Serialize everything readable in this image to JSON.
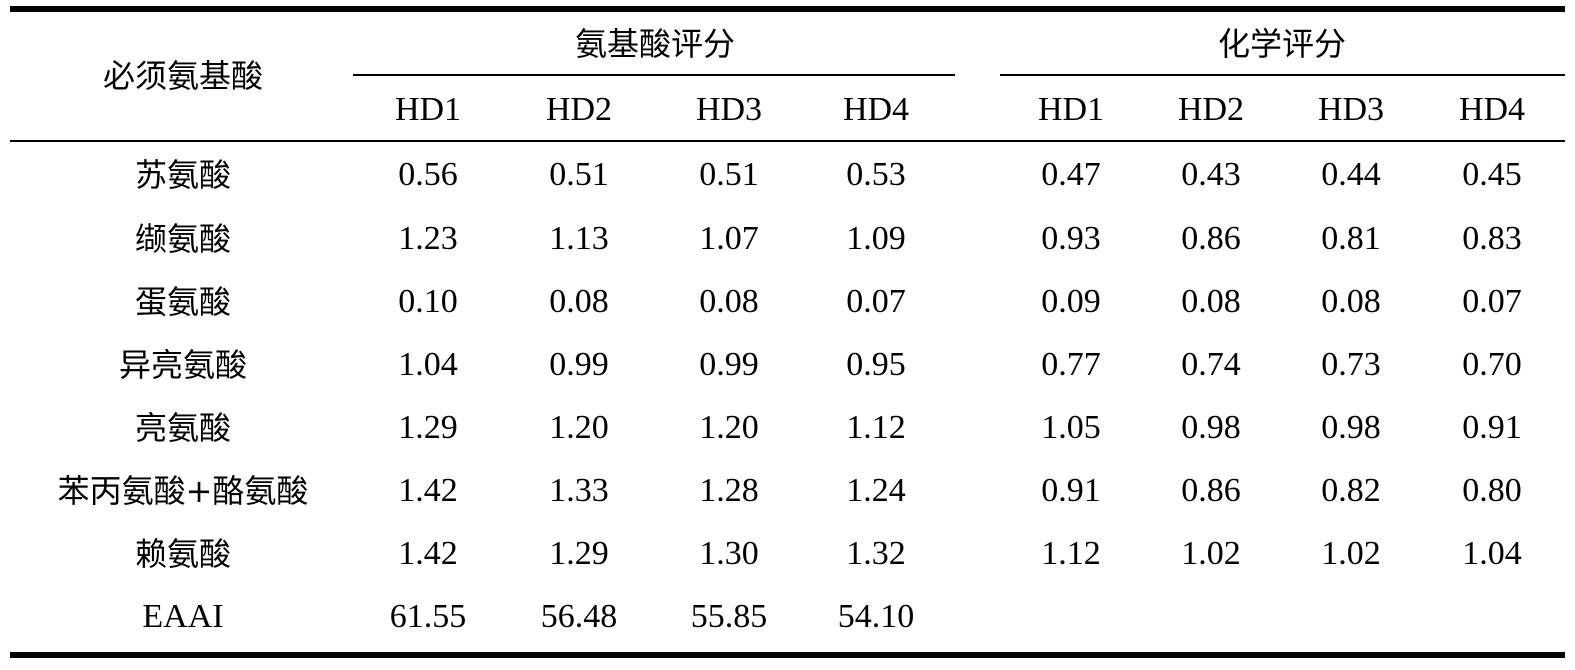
{
  "table": {
    "header": {
      "row_label": "必须氨基酸",
      "group1": "氨基酸评分",
      "group2": "化学评分",
      "columns": [
        "HD1",
        "HD2",
        "HD3",
        "HD4",
        "HD1",
        "HD2",
        "HD3",
        "HD4"
      ]
    },
    "rows": [
      {
        "label": "苏氨酸",
        "values": [
          "0.56",
          "0.51",
          "0.51",
          "0.53",
          "0.47",
          "0.43",
          "0.44",
          "0.45"
        ]
      },
      {
        "label": "缬氨酸",
        "values": [
          "1.23",
          "1.13",
          "1.07",
          "1.09",
          "0.93",
          "0.86",
          "0.81",
          "0.83"
        ]
      },
      {
        "label": "蛋氨酸",
        "values": [
          "0.10",
          "0.08",
          "0.08",
          "0.07",
          "0.09",
          "0.08",
          "0.08",
          "0.07"
        ]
      },
      {
        "label": "异亮氨酸",
        "values": [
          "1.04",
          "0.99",
          "0.99",
          "0.95",
          "0.77",
          "0.74",
          "0.73",
          "0.70"
        ]
      },
      {
        "label": "亮氨酸",
        "values": [
          "1.29",
          "1.20",
          "1.20",
          "1.12",
          "1.05",
          "0.98",
          "0.98",
          "0.91"
        ]
      },
      {
        "label": "苯丙氨酸+酪氨酸",
        "values": [
          "1.42",
          "1.33",
          "1.28",
          "1.24",
          "0.91",
          "0.86",
          "0.82",
          "0.80"
        ]
      },
      {
        "label": "赖氨酸",
        "values": [
          "1.42",
          "1.29",
          "1.30",
          "1.32",
          "1.12",
          "1.02",
          "1.02",
          "1.04"
        ]
      },
      {
        "label": "EAAI",
        "values": [
          "61.55",
          "56.48",
          "55.85",
          "54.10",
          "",
          "",
          "",
          ""
        ]
      }
    ]
  }
}
